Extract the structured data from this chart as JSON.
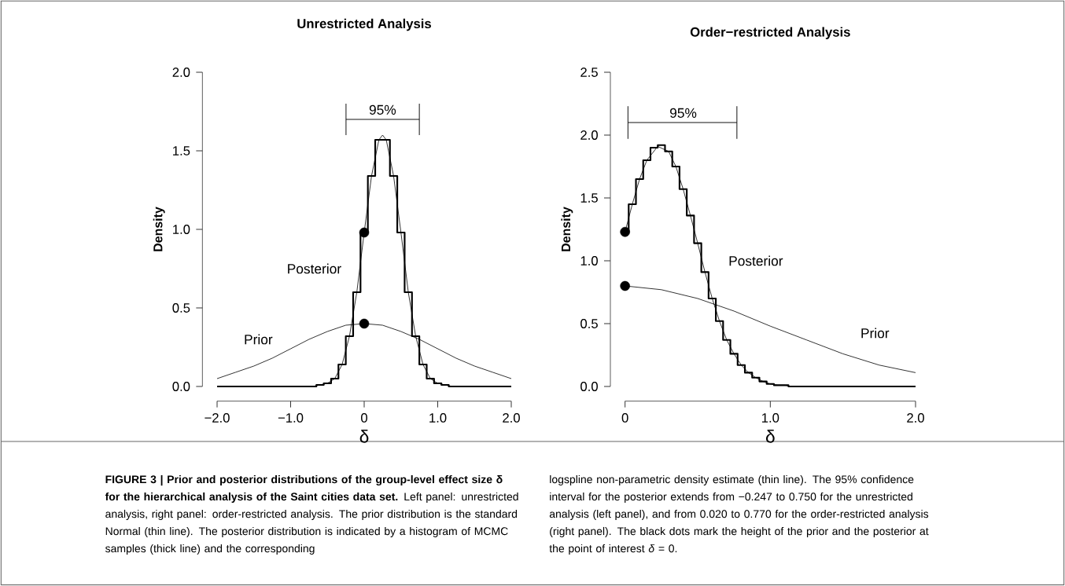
{
  "chart_data": [
    {
      "type": "line",
      "title": "Unrestricted Analysis",
      "xlabel": "δ",
      "ylabel": "Density",
      "xlim": [
        -2,
        2
      ],
      "ylim": [
        0,
        2
      ],
      "xticks": [
        {
          "value": -2,
          "label": "−2.0"
        },
        {
          "value": -1,
          "label": "−1.0"
        },
        0,
        {
          "value": 1,
          "label": "1.0"
        },
        {
          "value": 2,
          "label": "2.0"
        }
      ],
      "yticks": [
        {
          "value": 0,
          "label": "0.0"
        },
        {
          "value": 0.5,
          "label": "0.5"
        },
        {
          "value": 1,
          "label": "1.0"
        },
        {
          "value": 1.5,
          "label": "1.5"
        },
        {
          "value": 2,
          "label": "2.0"
        }
      ],
      "series": [
        {
          "name": "Prior",
          "color": "#000000",
          "x": [
            -2,
            -1.75,
            -1.5,
            -1.25,
            -1,
            -0.75,
            -0.5,
            -0.25,
            0,
            0.25,
            0.5,
            0.75,
            1,
            1.25,
            1.5,
            1.75,
            2
          ],
          "values": [
            0.05,
            0.09,
            0.13,
            0.18,
            0.24,
            0.3,
            0.35,
            0.39,
            0.4,
            0.39,
            0.35,
            0.3,
            0.24,
            0.18,
            0.13,
            0.09,
            0.05
          ]
        },
        {
          "name": "Posterior",
          "type": "step",
          "color": "#000000",
          "x": [
            -2,
            -0.8,
            -0.7,
            -0.6,
            -0.5,
            -0.4,
            -0.3,
            -0.2,
            -0.1,
            0,
            0.1,
            0.2,
            0.3,
            0.4,
            0.5,
            0.6,
            0.7,
            0.8,
            0.9,
            1.0,
            1.1,
            1.2,
            1.3,
            2
          ],
          "values": [
            0,
            0,
            0,
            0.01,
            0.02,
            0.05,
            0.14,
            0.32,
            0.6,
            0.98,
            1.34,
            1.57,
            1.57,
            1.34,
            0.98,
            0.6,
            0.32,
            0.14,
            0.05,
            0.02,
            0.01,
            0,
            0,
            0
          ]
        },
        {
          "color": "#000000",
          "x": [
            -2,
            -0.8,
            -0.7,
            -0.6,
            -0.5,
            -0.4,
            -0.3,
            -0.2,
            -0.1,
            0,
            0.1,
            0.2,
            0.25,
            0.3,
            0.4,
            0.5,
            0.6,
            0.7,
            0.8,
            0.9,
            1.0,
            1.1,
            1.2,
            1.3,
            2
          ],
          "values": [
            0,
            0,
            0,
            0.01,
            0.02,
            0.05,
            0.14,
            0.32,
            0.6,
            0.98,
            1.34,
            1.57,
            1.6,
            1.57,
            1.34,
            0.98,
            0.6,
            0.32,
            0.14,
            0.05,
            0.02,
            0.01,
            0,
            0,
            0
          ]
        },
        {
          "type": "scatter",
          "marker": "circle",
          "color": "#000000",
          "x": [
            0,
            0
          ],
          "values": [
            0.98,
            0.4
          ]
        },
        {
          "color": "#000000",
          "x": [
            -0.247,
            0.75
          ],
          "values": [
            1.7,
            1.7
          ],
          "errors": [
            0.1,
            0.1
          ]
        }
      ],
      "annotations": [
        {
          "text": "95%",
          "x": 0.25,
          "y": 1.7
        },
        "**FIGURE 3 | Prior and posterior distributions of the group-level effect size δ for the hierarchical analysis of the Saint cities data set.** Left panel: unrestricted analysis, right panel: order-restricted analysis. The prior distribution is the standard Normal (thin line). The posterior distribution is indicated by a histogram of MCMC samples (thick line) and the corresponding"
      ]
    },
    {
      "type": "line",
      "title": "Order−restricted Analysis",
      "xlabel": "δ",
      "ylabel": "Density",
      "xlim": [
        0,
        2
      ],
      "ylim": [
        0,
        2.5
      ],
      "xticks": [
        0,
        {
          "value": 1,
          "label": "1.0"
        },
        {
          "value": 2,
          "label": "2.0"
        }
      ],
      "yticks": [
        {
          "value": 0,
          "label": "0.0"
        },
        {
          "value": 0.5,
          "label": "0.5"
        },
        {
          "value": 1,
          "label": "1.0"
        },
        {
          "value": 1.5,
          "label": "1.5"
        },
        {
          "value": 2,
          "label": "2.0"
        },
        {
          "value": 2.5,
          "label": "2.5"
        }
      ],
      "series": [
        {
          "name": "Prior",
          "color": "#000000",
          "x": [
            0,
            0.25,
            0.5,
            0.75,
            1,
            1.25,
            1.5,
            1.75,
            2
          ],
          "values": [
            0.8,
            0.77,
            0.7,
            0.6,
            0.48,
            0.37,
            0.26,
            0.17,
            0.11
          ]
        },
        {
          "name": "Posterior",
          "type": "step",
          "color": "#000000",
          "x": [
            0,
            0.05,
            0.1,
            0.15,
            0.2,
            0.25,
            0.3,
            0.35,
            0.4,
            0.45,
            0.5,
            0.55,
            0.6,
            0.65,
            0.7,
            0.75,
            0.8,
            0.85,
            0.9,
            0.95,
            1.0,
            1.05,
            1.1,
            1.15,
            1.2,
            1.3,
            2
          ],
          "values": [
            1.23,
            1.45,
            1.65,
            1.8,
            1.9,
            1.92,
            1.87,
            1.75,
            1.57,
            1.36,
            1.14,
            0.91,
            0.7,
            0.52,
            0.37,
            0.26,
            0.17,
            0.11,
            0.07,
            0.04,
            0.02,
            0.01,
            0.01,
            0,
            0,
            0,
            0
          ]
        },
        {
          "color": "#000000",
          "x": [
            0,
            0.05,
            0.1,
            0.15,
            0.225,
            0.3,
            0.35,
            0.4,
            0.45,
            0.5,
            0.55,
            0.6,
            0.65,
            0.7,
            0.75,
            0.8,
            0.85,
            0.9,
            0.95,
            1.0,
            1.05,
            1.1,
            1.15,
            1.2,
            1.3,
            2
          ],
          "values": [
            1.23,
            1.45,
            1.65,
            1.8,
            1.91,
            1.87,
            1.75,
            1.57,
            1.36,
            1.14,
            0.91,
            0.7,
            0.52,
            0.37,
            0.26,
            0.17,
            0.11,
            0.07,
            0.04,
            0.02,
            0.01,
            0.01,
            0,
            0,
            0,
            0
          ]
        },
        {
          "type": "scatter",
          "marker": "circle",
          "color": "#000000",
          "x": [
            0,
            0
          ],
          "values": [
            1.23,
            0.8
          ]
        },
        {
          "color": "#000000",
          "x": [
            0.02,
            0.77
          ],
          "values": [
            2.1,
            2.1
          ],
          "errors": [
            0.13,
            0.13
          ]
        }
      ],
      "annotations": [
        {
          "text": "95%",
          "x": 0.4,
          "y": 2.1
        },
        "logspline non-parametric density estimate (thin line). The 95% confidence interval for the posterior extends from −0.247 to 0.750 for the unrestricted analysis (left panel), and from 0.020 to 0.770 for the order-restricted analysis (right panel). The black dots mark the height of the prior and the posterior at the point of interest *δ* = 0."
      ]
    }
  ]
}
